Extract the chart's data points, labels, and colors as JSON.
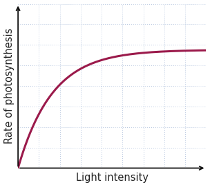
{
  "bg_color": "#ffffff",
  "grid_color": "#b8c8e0",
  "curve_color": "#9b1a4b",
  "curve_linewidth": 2.2,
  "xlabel": "Light intensity",
  "ylabel": "Rate of photosynthesis",
  "xlabel_fontsize": 10.5,
  "ylabel_fontsize": 10.5,
  "font_color": "#222222",
  "xlim": [
    0,
    10
  ],
  "ylim": [
    0,
    10
  ],
  "saturation_level": 7.2,
  "curve_k": 5.5,
  "n_grid_x": 9,
  "n_grid_y": 8
}
